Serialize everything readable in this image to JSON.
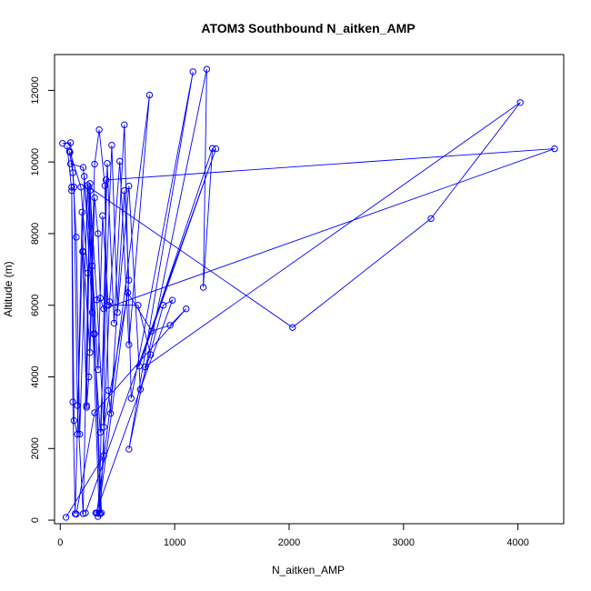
{
  "chart_data": {
    "type": "scatter",
    "title": "ATOM3 Southbound N_aitken_AMP",
    "xlabel": "N_aitken_AMP",
    "ylabel": "Altitude (m)",
    "xlim": [
      -50,
      4400
    ],
    "ylim": [
      -100,
      13000
    ],
    "xticks": [
      0,
      1000,
      2000,
      3000,
      4000
    ],
    "yticks": [
      0,
      2000,
      4000,
      6000,
      8000,
      10000,
      12000
    ],
    "grid": false,
    "legend": "none",
    "line_connected": true,
    "color": "#0000ff",
    "series": [
      {
        "points": [
          [
            20,
            10520
          ],
          [
            90,
            10540
          ],
          [
            120,
            9300
          ],
          [
            150,
            3200
          ],
          [
            200,
            180
          ],
          [
            260,
            9400
          ],
          [
            300,
            5200
          ],
          [
            350,
            180
          ],
          [
            430,
            6100
          ],
          [
            520,
            10020
          ],
          [
            600,
            4900
          ],
          [
            780,
            11870
          ],
          [
            320,
            200
          ]
        ]
      },
      {
        "points": [
          [
            60,
            10450
          ],
          [
            100,
            9200
          ],
          [
            110,
            3300
          ],
          [
            130,
            180
          ],
          [
            210,
            9600
          ],
          [
            280,
            5800
          ],
          [
            340,
            180
          ],
          [
            410,
            9960
          ],
          [
            470,
            5500
          ],
          [
            560,
            11040
          ],
          [
            620,
            3400
          ],
          [
            1160,
            12520
          ],
          [
            600,
            1980
          ],
          [
            1280,
            12590
          ],
          [
            1250,
            6500
          ],
          [
            1330,
            10380
          ],
          [
            690,
            4300
          ],
          [
            1360,
            10370
          ],
          [
            220,
            200
          ]
        ]
      },
      {
        "points": [
          [
            80,
            10300
          ],
          [
            110,
            9700
          ],
          [
            140,
            7900
          ],
          [
            170,
            2400
          ],
          [
            240,
            9350
          ],
          [
            290,
            5200
          ],
          [
            350,
            2450
          ],
          [
            450,
            10470
          ],
          [
            500,
            5800
          ],
          [
            600,
            9330
          ],
          [
            700,
            3650
          ],
          [
            900,
            6000
          ],
          [
            980,
            6140
          ],
          [
            310,
            200
          ]
        ]
      },
      {
        "points": [
          [
            85,
            10270
          ],
          [
            180,
            9300
          ],
          [
            240,
            6900
          ],
          [
            230,
            3200
          ],
          [
            260,
            9200
          ],
          [
            320,
            6150
          ],
          [
            380,
            2600
          ],
          [
            590,
            6350
          ],
          [
            800,
            5280
          ],
          [
            960,
            5440
          ],
          [
            1100,
            5900
          ],
          [
            300,
            3000
          ],
          [
            140,
            170
          ]
        ]
      },
      {
        "points": [
          [
            90,
            9950
          ],
          [
            200,
            9850
          ],
          [
            280,
            7100
          ],
          [
            330,
            4200
          ],
          [
            370,
            8500
          ],
          [
            420,
            6000
          ],
          [
            680,
            6000
          ],
          [
            790,
            4620
          ],
          [
            740,
            4280
          ],
          [
            4020,
            11660
          ],
          [
            3240,
            8420
          ],
          [
            2030,
            5380
          ],
          [
            250,
            9300
          ],
          [
            360,
            200
          ]
        ]
      },
      {
        "points": [
          [
            100,
            9300
          ],
          [
            120,
            2780
          ],
          [
            150,
            2400
          ],
          [
            190,
            8600
          ],
          [
            200,
            7500
          ],
          [
            260,
            4680
          ],
          [
            300,
            9000
          ],
          [
            330,
            8000
          ],
          [
            350,
            6200
          ],
          [
            380,
            5900
          ],
          [
            4320,
            10370
          ],
          [
            400,
            9500
          ],
          [
            380,
            1800
          ],
          [
            50,
            80
          ]
        ]
      },
      {
        "points": [
          [
            195,
            7500
          ],
          [
            230,
            3150
          ],
          [
            250,
            4000
          ],
          [
            300,
            9940
          ],
          [
            340,
            10900
          ],
          [
            390,
            9340
          ],
          [
            420,
            3620
          ],
          [
            440,
            2980
          ],
          [
            560,
            9200
          ],
          [
            600,
            6700
          ],
          [
            330,
            100
          ]
        ]
      }
    ]
  }
}
